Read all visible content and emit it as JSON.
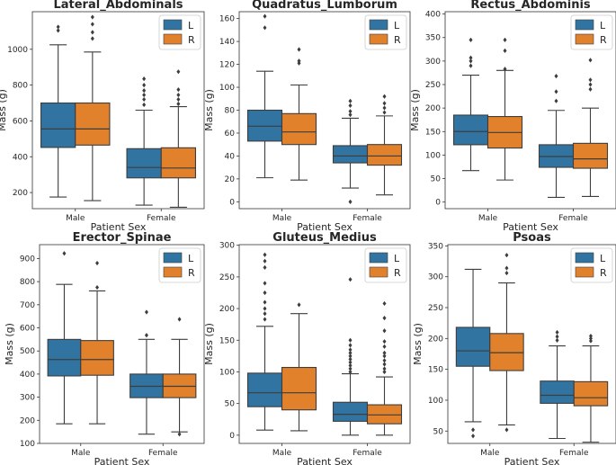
{
  "chart_data": [
    {
      "type": "box",
      "title": "Lateral_Abdominals",
      "xlabel": "Patient Sex",
      "ylabel": "Mass (g)",
      "categories": [
        "Male",
        "Female"
      ],
      "ylim": [
        110,
        1210
      ],
      "yticks": [
        200,
        400,
        600,
        800,
        1000
      ],
      "yticklabels": [
        "200",
        "400",
        "600",
        "800",
        "1000"
      ],
      "legend": {
        "position": "top-right",
        "entries": [
          "L",
          "R"
        ]
      },
      "series": [
        {
          "name": "L",
          "color": "#3274a1",
          "boxes": [
            {
              "category": "Male",
              "whislo": 175,
              "q1": 452,
              "med": 555,
              "q3": 700,
              "whishi": 1025,
              "fliers": [
                1105,
                1125
              ]
            },
            {
              "category": "Female",
              "whislo": 130,
              "q1": 282,
              "med": 340,
              "q3": 445,
              "whishi": 660,
              "fliers": [
                690,
                720,
                745,
                770,
                800,
                835
              ]
            }
          ]
        },
        {
          "name": "R",
          "color": "#e1812c",
          "boxes": [
            {
              "category": "Male",
              "whislo": 155,
              "q1": 465,
              "med": 555,
              "q3": 700,
              "whishi": 985,
              "fliers": [
                1060,
                1095,
                1140,
                1180
              ]
            },
            {
              "category": "Female",
              "whislo": 118,
              "q1": 282,
              "med": 337,
              "q3": 450,
              "whishi": 680,
              "fliers": [
                695,
                720,
                745,
                775,
                875
              ]
            }
          ]
        }
      ]
    },
    {
      "type": "box",
      "title": "Quadratus_Lumborum",
      "xlabel": "Patient Sex",
      "ylabel": "Mass (g)",
      "categories": [
        "Male",
        "Female"
      ],
      "ylim": [
        -6,
        166
      ],
      "yticks": [
        0,
        20,
        40,
        60,
        80,
        100,
        120,
        140,
        160
      ],
      "yticklabels": [
        "0",
        "20",
        "40",
        "60",
        "80",
        "100",
        "120",
        "140",
        "160"
      ],
      "legend": {
        "position": "top-right",
        "entries": [
          "L",
          "R"
        ]
      },
      "series": [
        {
          "name": "L",
          "color": "#3274a1",
          "boxes": [
            {
              "category": "Male",
              "whislo": 21,
              "q1": 53,
              "med": 66,
              "q3": 80,
              "whishi": 114,
              "fliers": [
                152,
                162
              ]
            },
            {
              "category": "Female",
              "whislo": 12,
              "q1": 34,
              "med": 40,
              "q3": 49,
              "whishi": 73,
              "fliers": [
                0,
                76,
                79,
                84,
                88
              ]
            }
          ]
        },
        {
          "name": "R",
          "color": "#e1812c",
          "boxes": [
            {
              "category": "Male",
              "whislo": 19,
              "q1": 50,
              "med": 61,
              "q3": 77,
              "whishi": 102,
              "fliers": [
                121,
                123,
                133
              ]
            },
            {
              "category": "Female",
              "whislo": 6,
              "q1": 32,
              "med": 40,
              "q3": 50,
              "whishi": 75,
              "fliers": [
                78,
                82,
                86,
                92
              ]
            }
          ]
        }
      ]
    },
    {
      "type": "box",
      "title": "Rectus_Abdominis",
      "xlabel": "Patient Sex",
      "ylabel": "Mass (g)",
      "categories": [
        "Male",
        "Female"
      ],
      "ylim": [
        -14,
        405
      ],
      "yticks": [
        0,
        50,
        100,
        150,
        200,
        250,
        300,
        350,
        400
      ],
      "yticklabels": [
        "0",
        "50",
        "100",
        "150",
        "200",
        "250",
        "300",
        "350",
        "400"
      ],
      "legend": {
        "position": "top-right",
        "entries": [
          "L",
          "R"
        ]
      },
      "series": [
        {
          "name": "L",
          "color": "#3274a1",
          "boxes": [
            {
              "category": "Male",
              "whislo": 67,
              "q1": 122,
              "med": 150,
              "q3": 185,
              "whishi": 270,
              "fliers": [
                290,
                300,
                307,
                345
              ]
            },
            {
              "category": "Female",
              "whislo": 10,
              "q1": 74,
              "med": 97,
              "q3": 122,
              "whishi": 195,
              "fliers": [
                215,
                235,
                268
              ]
            }
          ]
        },
        {
          "name": "R",
          "color": "#e1812c",
          "boxes": [
            {
              "category": "Male",
              "whislo": 47,
              "q1": 115,
              "med": 148,
              "q3": 182,
              "whishi": 280,
              "fliers": [
                283,
                322,
                345
              ]
            },
            {
              "category": "Female",
              "whislo": 12,
              "q1": 72,
              "med": 92,
              "q3": 125,
              "whishi": 200,
              "fliers": [
                240,
                250,
                260,
                302
              ]
            }
          ]
        }
      ]
    },
    {
      "type": "box",
      "title": "Erector_Spinae",
      "xlabel": "Patient Sex",
      "ylabel": "Mass (g)",
      "categories": [
        "Male",
        "Female"
      ],
      "ylim": [
        100,
        960
      ],
      "yticks": [
        100,
        200,
        300,
        400,
        500,
        600,
        700,
        800,
        900
      ],
      "yticklabels": [
        "100",
        "200",
        "300",
        "400",
        "500",
        "600",
        "700",
        "800",
        "900"
      ],
      "legend": {
        "position": "top-right",
        "entries": [
          "L",
          "R"
        ]
      },
      "series": [
        {
          "name": "L",
          "color": "#3274a1",
          "boxes": [
            {
              "category": "Male",
              "whislo": 185,
              "q1": 392,
              "med": 463,
              "q3": 550,
              "whishi": 788,
              "fliers": [
                922
              ]
            },
            {
              "category": "Female",
              "whislo": 140,
              "q1": 298,
              "med": 347,
              "q3": 400,
              "whishi": 550,
              "fliers": [
                568,
                668
              ]
            }
          ]
        },
        {
          "name": "R",
          "color": "#e1812c",
          "boxes": [
            {
              "category": "Male",
              "whislo": 185,
              "q1": 395,
              "med": 463,
              "q3": 545,
              "whishi": 760,
              "fliers": [
                775,
                880
              ]
            },
            {
              "category": "Female",
              "whislo": 150,
              "q1": 298,
              "med": 347,
              "q3": 400,
              "whishi": 550,
              "fliers": [
                140,
                637
              ]
            }
          ]
        }
      ]
    },
    {
      "type": "box",
      "title": "Gluteus_Medius",
      "xlabel": "Patient Sex",
      "ylabel": "Mass (g)",
      "categories": [
        "Male",
        "Female"
      ],
      "ylim": [
        -13,
        301
      ],
      "yticks": [
        0,
        50,
        100,
        150,
        200,
        250,
        300
      ],
      "yticklabels": [
        "0",
        "50",
        "100",
        "150",
        "200",
        "250",
        "300"
      ],
      "legend": {
        "position": "top-right",
        "entries": [
          "L",
          "R"
        ]
      },
      "series": [
        {
          "name": "L",
          "color": "#3274a1",
          "boxes": [
            {
              "category": "Male",
              "whislo": 8,
              "q1": 45,
              "med": 67,
              "q3": 98,
              "whishi": 172,
              "fliers": [
                183,
                192,
                200,
                210,
                225,
                240,
                265,
                275,
                285
              ]
            },
            {
              "category": "Female",
              "whislo": 0,
              "q1": 22,
              "med": 33,
              "q3": 52,
              "whishi": 97,
              "fliers": [
                100,
                105,
                110,
                115,
                120,
                125,
                130,
                135,
                142,
                150,
                246
              ]
            }
          ]
        },
        {
          "name": "R",
          "color": "#e1812c",
          "boxes": [
            {
              "category": "Male",
              "whislo": 7,
              "q1": 40,
              "med": 67,
              "q3": 107,
              "whishi": 192,
              "fliers": [
                206
              ]
            },
            {
              "category": "Female",
              "whislo": 0,
              "q1": 18,
              "med": 32,
              "q3": 48,
              "whishi": 92,
              "fliers": [
                100,
                105,
                112,
                118,
                125,
                130,
                140,
                148,
                165,
                185,
                208
              ]
            }
          ]
        }
      ]
    },
    {
      "type": "box",
      "title": "Psoas",
      "xlabel": "Patient Sex",
      "ylabel": "Mass (g)",
      "categories": [
        "Male",
        "Female"
      ],
      "ylim": [
        30,
        352
      ],
      "yticks": [
        50,
        100,
        150,
        200,
        250,
        300,
        350
      ],
      "yticklabels": [
        "50",
        "100",
        "150",
        "200",
        "250",
        "300",
        "350"
      ],
      "legend": {
        "position": "top-right",
        "entries": [
          "L",
          "R"
        ]
      },
      "series": [
        {
          "name": "L",
          "color": "#3274a1",
          "boxes": [
            {
              "category": "Male",
              "whislo": 65,
              "q1": 155,
              "med": 180,
              "q3": 218,
              "whishi": 312,
              "fliers": [
                42,
                52
              ]
            },
            {
              "category": "Female",
              "whislo": 38,
              "q1": 95,
              "med": 108,
              "q3": 131,
              "whishi": 188,
              "fliers": [
                197,
                203,
                210
              ]
            }
          ]
        },
        {
          "name": "R",
          "color": "#e1812c",
          "boxes": [
            {
              "category": "Male",
              "whislo": 60,
              "q1": 148,
              "med": 177,
              "q3": 208,
              "whishi": 290,
              "fliers": [
                52,
                306,
                314,
                335
              ]
            },
            {
              "category": "Female",
              "whislo": 32,
              "q1": 91,
              "med": 104,
              "q3": 130,
              "whishi": 188,
              "fliers": [
                196,
                200,
                204
              ]
            }
          ]
        }
      ]
    }
  ]
}
